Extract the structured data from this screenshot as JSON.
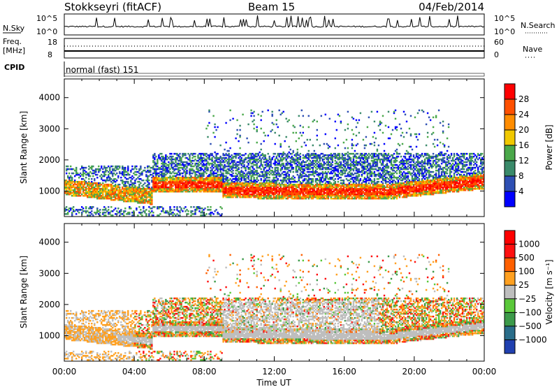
{
  "header": {
    "station": "Stokkseyri (fitACF)",
    "beam": "Beam 15",
    "date": "04/Feb/2014"
  },
  "strips": {
    "nsky_label": "N.Sky",
    "nsky_top": "10^5",
    "nsky_bottom": "10^0",
    "nsearch_label": "N.Search",
    "nsearch_top": "10^5",
    "nsearch_bottom": "10^0",
    "freq_label_1": "Freq.",
    "freq_label_2": "[MHz]",
    "freq_top": "18",
    "freq_bottom": "8",
    "nave_label": "Nave",
    "nave_top": "60",
    "nave_bottom": "0",
    "cpid_label": "CPID",
    "cpid_value": "normal (fast) 151"
  },
  "colors": {
    "power": [
      "#0000ff",
      "#2e4fb3",
      "#3a8a6a",
      "#4aa84a",
      "#f0c800",
      "#ff8c00",
      "#ff5000",
      "#ff0000"
    ],
    "velocity": [
      "#2040b0",
      "#2a6d8a",
      "#3c9a4a",
      "#5ac83a",
      "#bebebe",
      "#ffa020",
      "#ff6000",
      "#ff1010",
      "#ff0000"
    ],
    "gray": "#bebebe"
  },
  "chart_data": [
    {
      "type": "heatmap",
      "name": "power",
      "ylabel": "Slant Range [km]",
      "yticks": [
        1000,
        2000,
        3000,
        4000
      ],
      "ylim": [
        180,
        4600
      ],
      "xlim_hours": [
        0,
        24
      ],
      "xtick_labels": [
        "00:00",
        "04:00",
        "08:00",
        "12:00",
        "16:00",
        "20:00",
        "00:00"
      ],
      "colorbar": {
        "label": "Power [dB]",
        "ticks": [
          "4",
          "8",
          "12",
          "16",
          "20",
          "24",
          "28"
        ],
        "range": [
          0,
          32
        ]
      }
    },
    {
      "type": "heatmap",
      "name": "velocity",
      "ylabel": "Slant Range [km]",
      "yticks": [
        1000,
        2000,
        3000,
        4000
      ],
      "ylim": [
        180,
        4600
      ],
      "xlim_hours": [
        0,
        24
      ],
      "xlabel": "Time UT",
      "xtick_labels": [
        "00:00",
        "04:00",
        "08:00",
        "12:00",
        "16:00",
        "20:00",
        "00:00"
      ],
      "colorbar": {
        "label": "Velocity [m s⁻¹]",
        "ticks": [
          "1000",
          "500",
          "100",
          "25",
          "−25",
          "−100",
          "−500",
          "−1000"
        ]
      }
    }
  ]
}
